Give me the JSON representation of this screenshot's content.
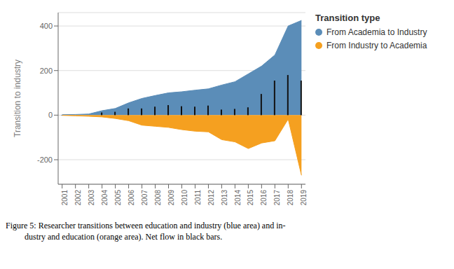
{
  "chart_data": {
    "type": "area",
    "x": [
      2001,
      2002,
      2003,
      2004,
      2005,
      2006,
      2007,
      2008,
      2009,
      2010,
      2011,
      2012,
      2013,
      2014,
      2015,
      2016,
      2017,
      2018,
      2019
    ],
    "series": [
      {
        "name": "From Academia to Industry",
        "type": "area",
        "color": "#5b8db8",
        "values": [
          2,
          3,
          5,
          20,
          30,
          55,
          75,
          88,
          100,
          105,
          112,
          118,
          135,
          150,
          185,
          220,
          270,
          400,
          425
        ]
      },
      {
        "name": "From Industry to Academia",
        "type": "area",
        "color": "#f5a020",
        "values": [
          -1,
          -3,
          -5,
          -8,
          -15,
          -25,
          -45,
          -50,
          -55,
          -65,
          -72,
          -75,
          -110,
          -120,
          -150,
          -125,
          -115,
          -18,
          -270
        ]
      },
      {
        "type": "bar",
        "color": "#111111",
        "values": [
          1,
          0,
          0,
          12,
          15,
          30,
          30,
          38,
          45,
          40,
          38,
          43,
          25,
          28,
          35,
          95,
          155,
          180,
          155
        ]
      }
    ],
    "y_label": "Transition to industry",
    "legend_title": "Transition type",
    "annotations": [
      "Figure 5: Researcher transitions between education and industry (blue area) and in-",
      "         dustry and education (orange area). Net flow in black bars."
    ],
    "xlim": [
      2000.7,
      2019.3
    ],
    "xticks": [
      2001,
      2002,
      2003,
      2004,
      2005,
      2006,
      2007,
      2008,
      2009,
      2010,
      2011,
      2012,
      2013,
      2014,
      2015,
      2016,
      2017,
      2018,
      2019
    ],
    "ylim": [
      -310,
      460
    ],
    "yticks": [
      -200,
      0,
      200,
      400
    ],
    "grid": "y",
    "legend": "right"
  }
}
